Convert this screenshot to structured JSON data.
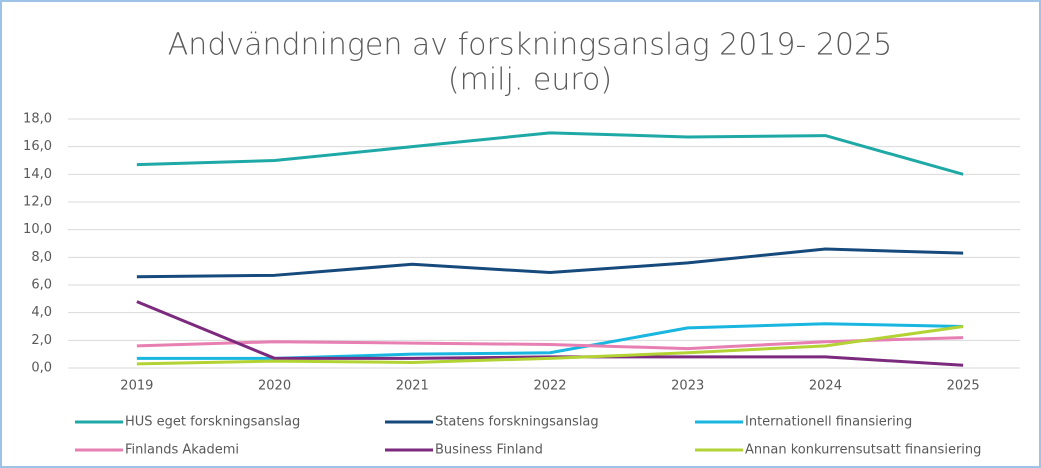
{
  "chart_data": {
    "type": "line",
    "title": "Andvändningen av forskningsanslag 2019- 2025",
    "subtitle": "(milj. euro)",
    "categories": [
      "2019",
      "2020",
      "2021",
      "2022",
      "2023",
      "2024",
      "2025"
    ],
    "series": [
      {
        "name": "HUS eget forskningsanslag",
        "color": "#1fa9a6",
        "values": [
          14.7,
          15.0,
          16.0,
          17.0,
          16.7,
          16.8,
          14.0
        ]
      },
      {
        "name": "Statens forskningsanslag",
        "color": "#174a7c",
        "values": [
          6.6,
          6.7,
          7.5,
          6.9,
          7.6,
          8.6,
          8.3
        ]
      },
      {
        "name": "Internationell finansiering",
        "color": "#19b6e0",
        "values": [
          0.7,
          0.7,
          1.0,
          1.1,
          2.9,
          3.2,
          3.0
        ]
      },
      {
        "name": "Finlands Akademi",
        "color": "#e77fb3",
        "values": [
          1.6,
          1.9,
          1.8,
          1.7,
          1.4,
          1.9,
          2.2
        ]
      },
      {
        "name": "Business Finland",
        "color": "#7b2a7d",
        "values": [
          4.8,
          0.7,
          0.7,
          0.8,
          0.8,
          0.8,
          0.2
        ]
      },
      {
        "name": "Annan konkurrensutsatt finansiering",
        "color": "#b3d334",
        "values": [
          0.3,
          0.5,
          0.4,
          0.7,
          1.1,
          1.6,
          3.0
        ]
      }
    ],
    "ylim": [
      0,
      18
    ],
    "yticks": [
      {
        "value": 0,
        "label": "0,0"
      },
      {
        "value": 2,
        "label": "2,0"
      },
      {
        "value": 4,
        "label": "4,0"
      },
      {
        "value": 6,
        "label": "6,0"
      },
      {
        "value": 8,
        "label": "8,0"
      },
      {
        "value": 10,
        "label": "10,0"
      },
      {
        "value": 12,
        "label": "12,0"
      },
      {
        "value": 14,
        "label": "14,0"
      },
      {
        "value": 16,
        "label": "16,0"
      },
      {
        "value": 18,
        "label": "18,0"
      }
    ],
    "grid": true
  }
}
